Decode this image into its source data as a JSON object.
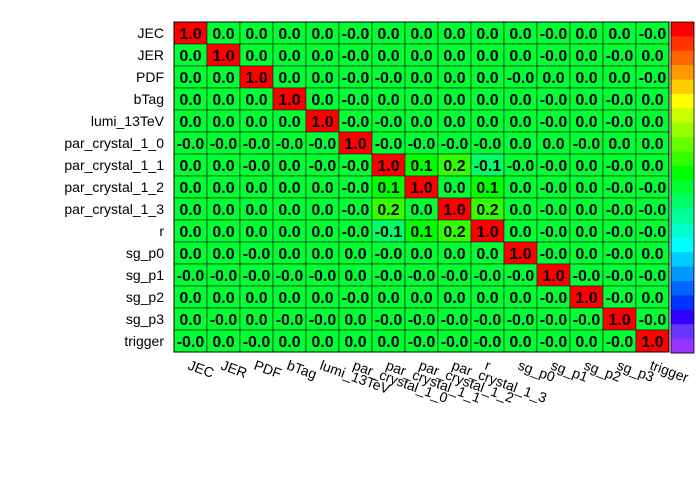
{
  "chart_data": {
    "type": "heatmap",
    "title": "",
    "xlabel": "",
    "ylabel": "",
    "labels": [
      "JEC",
      "JER",
      "PDF",
      "bTag",
      "lumi_13TeV",
      "par_crystal_1_0",
      "par_crystal_1_1",
      "par_crystal_1_2",
      "par_crystal_1_3",
      "r",
      "sg_p0",
      "sg_p1",
      "sg_p2",
      "sg_p3",
      "trigger"
    ],
    "value_range": [
      -1,
      1
    ],
    "matrix": [
      [
        1.0,
        0.0,
        0.0,
        0.0,
        0.0,
        -0.0,
        0.0,
        0.0,
        0.0,
        0.0,
        0.0,
        -0.0,
        0.0,
        0.0,
        -0.0
      ],
      [
        0.0,
        1.0,
        0.0,
        0.0,
        0.0,
        -0.0,
        0.0,
        0.0,
        0.0,
        0.0,
        0.0,
        -0.0,
        0.0,
        -0.0,
        0.0
      ],
      [
        0.0,
        0.0,
        1.0,
        0.0,
        0.0,
        -0.0,
        -0.0,
        0.0,
        0.0,
        0.0,
        -0.0,
        0.0,
        0.0,
        0.0,
        -0.0
      ],
      [
        0.0,
        0.0,
        0.0,
        1.0,
        0.0,
        -0.0,
        0.0,
        0.0,
        0.0,
        0.0,
        0.0,
        -0.0,
        0.0,
        -0.0,
        0.0
      ],
      [
        0.0,
        0.0,
        0.0,
        0.0,
        1.0,
        -0.0,
        -0.0,
        0.0,
        0.0,
        0.0,
        0.0,
        -0.0,
        0.0,
        -0.0,
        0.0
      ],
      [
        -0.0,
        -0.0,
        -0.0,
        -0.0,
        -0.0,
        1.0,
        -0.0,
        -0.0,
        -0.0,
        -0.0,
        0.0,
        0.0,
        -0.0,
        0.0,
        0.0
      ],
      [
        0.0,
        0.0,
        -0.0,
        0.0,
        -0.0,
        -0.0,
        1.0,
        0.1,
        0.2,
        -0.1,
        -0.0,
        -0.0,
        0.0,
        -0.0,
        0.0
      ],
      [
        0.0,
        0.0,
        0.0,
        0.0,
        0.0,
        -0.0,
        0.1,
        1.0,
        0.0,
        0.1,
        0.0,
        -0.0,
        0.0,
        -0.0,
        -0.0
      ],
      [
        0.0,
        0.0,
        0.0,
        0.0,
        0.0,
        -0.0,
        0.2,
        0.0,
        1.0,
        0.2,
        0.0,
        -0.0,
        0.0,
        -0.0,
        -0.0
      ],
      [
        0.0,
        0.0,
        0.0,
        0.0,
        0.0,
        -0.0,
        -0.1,
        0.1,
        0.2,
        1.0,
        0.0,
        -0.0,
        0.0,
        -0.0,
        -0.0
      ],
      [
        0.0,
        0.0,
        -0.0,
        0.0,
        0.0,
        0.0,
        -0.0,
        0.0,
        0.0,
        0.0,
        1.0,
        -0.0,
        0.0,
        -0.0,
        0.0
      ],
      [
        -0.0,
        -0.0,
        -0.0,
        -0.0,
        -0.0,
        0.0,
        -0.0,
        -0.0,
        -0.0,
        -0.0,
        -0.0,
        1.0,
        -0.0,
        -0.0,
        -0.0
      ],
      [
        0.0,
        0.0,
        0.0,
        0.0,
        0.0,
        -0.0,
        0.0,
        0.0,
        0.0,
        0.0,
        0.0,
        -0.0,
        1.0,
        -0.0,
        0.0
      ],
      [
        0.0,
        -0.0,
        0.0,
        -0.0,
        -0.0,
        0.0,
        -0.0,
        -0.0,
        -0.0,
        -0.0,
        -0.0,
        -0.0,
        -0.0,
        1.0,
        -0.0
      ],
      [
        -0.0,
        0.0,
        -0.0,
        0.0,
        0.0,
        0.0,
        0.0,
        -0.0,
        -0.0,
        -0.0,
        0.0,
        -0.0,
        0.0,
        -0.0,
        1.0
      ]
    ],
    "palette": [
      "#9933ff",
      "#6633ff",
      "#3300ff",
      "#0033ff",
      "#0066ff",
      "#0099ff",
      "#00ccff",
      "#00ffff",
      "#00ffcc",
      "#00ff99",
      "#00ff66",
      "#00ff33",
      "#00ff00",
      "#33ff00",
      "#66ff00",
      "#99ff00",
      "#ccff00",
      "#ffff00",
      "#ffcc00",
      "#ff9900",
      "#ff6600",
      "#ff3300",
      "#ff0000"
    ]
  }
}
